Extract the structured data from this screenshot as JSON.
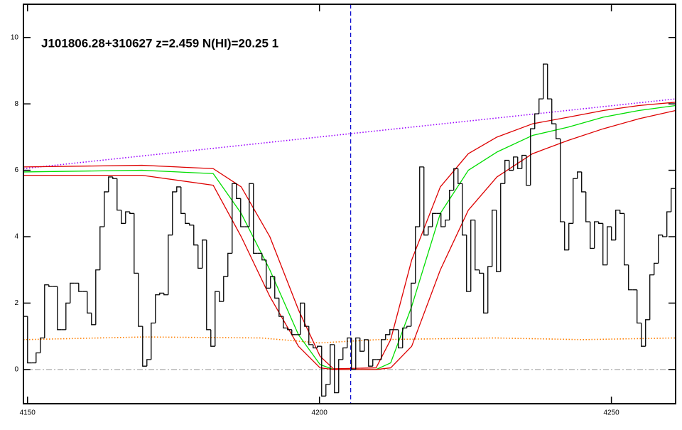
{
  "chart_data": {
    "type": "step",
    "title": "J101806.28+310627 z=2.459 N(HI)=20.25 1",
    "xlim": [
      4149.3,
      4261
    ],
    "ylim": [
      -1.03,
      11.0
    ],
    "xticks": [
      4150,
      4200,
      4250
    ],
    "yticks": [
      0,
      2,
      4,
      6,
      8,
      10
    ],
    "x": [
      4149.64,
      4150.37,
      4151.1,
      4151.83,
      4152.56,
      4153.29,
      4154.02,
      4154.75,
      4155.48,
      4156.21,
      4156.94,
      4157.67,
      4158.4,
      4159.13,
      4159.86,
      4160.59,
      4161.32,
      4162.05,
      4162.78,
      4163.51,
      4164.24,
      4164.97,
      4165.7,
      4166.43,
      4167.16,
      4167.89,
      4168.62,
      4169.35,
      4170.08,
      4170.81,
      4171.54,
      4172.27,
      4173.0,
      4173.73,
      4174.46,
      4175.19,
      4175.92,
      4176.65,
      4177.38,
      4178.11,
      4178.84,
      4179.57,
      4180.3,
      4181.03,
      4181.76,
      4182.49,
      4183.22,
      4183.95,
      4184.68,
      4185.41,
      4186.14,
      4186.87,
      4187.6,
      4188.33,
      4189.06,
      4189.79,
      4190.52,
      4191.25,
      4191.98,
      4192.71,
      4193.44,
      4194.17,
      4194.9,
      4195.63,
      4196.36,
      4197.09,
      4197.82,
      4198.55,
      4199.28,
      4200.01,
      4200.74,
      4201.47,
      4202.2,
      4202.93,
      4203.66,
      4204.39,
      4205.12,
      4205.85,
      4206.58,
      4207.31,
      4208.04,
      4208.77,
      4209.5,
      4210.23,
      4210.96,
      4211.69,
      4212.42,
      4213.15,
      4213.88,
      4214.61,
      4215.34,
      4216.07,
      4216.8,
      4217.53,
      4218.26,
      4218.99,
      4219.72,
      4220.45,
      4221.18,
      4221.91,
      4222.64,
      4223.37,
      4224.1,
      4224.83,
      4225.56,
      4226.29,
      4227.02,
      4227.75,
      4228.48,
      4229.21,
      4229.94,
      4230.67,
      4231.4,
      4232.13,
      4232.86,
      4233.59,
      4234.32,
      4235.05,
      4235.78,
      4236.51,
      4237.24,
      4237.97,
      4238.7,
      4239.43,
      4240.16,
      4240.89,
      4241.62,
      4242.35,
      4243.08,
      4243.81,
      4244.54,
      4245.27,
      4246.0,
      4246.73,
      4247.46,
      4248.19,
      4248.92,
      4249.65,
      4250.38,
      4251.11,
      4251.84,
      4252.57,
      4253.3,
      4254.03,
      4254.76,
      4255.49,
      4256.22,
      4256.95,
      4257.68,
      4258.41,
      4259.14,
      4259.87,
      4260.6
    ],
    "values": [
      1.6,
      0.2,
      0.2,
      0.5,
      0.95,
      2.55,
      2.5,
      2.5,
      1.2,
      1.2,
      2.0,
      2.6,
      2.6,
      2.35,
      2.35,
      1.7,
      1.35,
      3.0,
      4.3,
      5.35,
      5.8,
      5.75,
      4.8,
      4.4,
      4.75,
      4.7,
      2.9,
      1.3,
      0.1,
      0.3,
      1.4,
      2.25,
      2.3,
      2.25,
      4.05,
      5.35,
      5.5,
      4.7,
      4.4,
      4.35,
      3.75,
      3.05,
      3.9,
      1.2,
      0.7,
      2.35,
      2.05,
      2.8,
      3.5,
      5.6,
      5.15,
      4.3,
      4.3,
      5.6,
      3.5,
      3.5,
      3.3,
      2.45,
      2.8,
      2.15,
      1.6,
      1.25,
      1.2,
      1.05,
      1.05,
      2.0,
      1.3,
      0.75,
      0.65,
      0.7,
      -0.8,
      -0.45,
      0.75,
      -0.7,
      0.3,
      0.65,
      0.95,
      0.0,
      0.95,
      0.55,
      0.9,
      0.1,
      0.3,
      0.3,
      0.9,
      1.05,
      1.2,
      1.2,
      0.65,
      1.25,
      1.3,
      2.6,
      4.3,
      6.1,
      4.05,
      4.3,
      4.7,
      4.7,
      4.3,
      4.5,
      5.4,
      6.05,
      5.6,
      4.05,
      2.35,
      4.5,
      3.0,
      2.9,
      1.7,
      3.1,
      4.8,
      2.95,
      5.6,
      6.3,
      6.0,
      6.4,
      6.05,
      6.45,
      5.55,
      7.25,
      7.7,
      8.15,
      9.2,
      8.15,
      7.4,
      6.95,
      4.45,
      3.6,
      4.4,
      5.75,
      5.95,
      5.35,
      4.45,
      3.65,
      4.45,
      4.4,
      3.15,
      4.3,
      3.9,
      4.8,
      4.7,
      3.15,
      2.4,
      2.4,
      1.4,
      0.7,
      1.5,
      2.85,
      3.2,
      4.05,
      4.0,
      4.75,
      5.45
    ],
    "color": "#000000",
    "lines": [
      {
        "color": "#ff7f00",
        "style": "dotted",
        "x": [
          4149.3,
          4170,
          4190,
          4200,
          4210,
          4230,
          4245,
          4261
        ],
        "values": [
          0.9,
          0.98,
          0.95,
          0.8,
          0.9,
          0.95,
          0.9,
          0.95
        ]
      },
      {
        "color": "#9b00ff",
        "style": "dotted",
        "x": [
          4149.3,
          4261
        ],
        "values": [
          6.05,
          8.15
        ]
      },
      {
        "color": "#00dd00",
        "style": "solid",
        "x": [
          4149.3,
          4169.6,
          4181.8,
          4186.6,
          4191.5,
          4196.4,
          4200.1,
          4202.4,
          4209.7,
          4212.2,
          4215.8,
          4220.7,
          4225.5,
          4230.4,
          4236.5,
          4242.6,
          4248.6,
          4254.7,
          4261
        ],
        "values": [
          5.95,
          6.0,
          5.9,
          4.7,
          3.0,
          1.05,
          0.15,
          0.0,
          0.0,
          0.2,
          1.9,
          4.7,
          6.0,
          6.55,
          7.05,
          7.3,
          7.6,
          7.8,
          7.95
        ]
      },
      {
        "color": "#dd0000",
        "style": "solid",
        "x": [
          4149.3,
          4169.6,
          4181.8,
          4186.6,
          4191.5,
          4196.4,
          4200.1,
          4202.4,
          4209.7,
          4212.2,
          4215.8,
          4220.7,
          4225.5,
          4230.4,
          4236.5,
          4242.6,
          4248.6,
          4254.7,
          4261
        ],
        "values": [
          6.1,
          6.15,
          6.05,
          5.5,
          4.0,
          1.8,
          0.4,
          0.02,
          0.05,
          0.9,
          3.3,
          5.5,
          6.5,
          7.0,
          7.4,
          7.6,
          7.8,
          7.95,
          8.05
        ]
      },
      {
        "color": "#dd0000",
        "style": "solid",
        "x": [
          4149.3,
          4169.6,
          4181.8,
          4186.6,
          4191.5,
          4196.4,
          4200.1,
          4202.4,
          4209.7,
          4212.2,
          4215.8,
          4220.7,
          4225.5,
          4230.4,
          4236.5,
          4242.6,
          4248.6,
          4254.7,
          4261
        ],
        "values": [
          5.85,
          5.85,
          5.55,
          4.0,
          2.2,
          0.7,
          0.05,
          0.0,
          0.0,
          0.05,
          0.7,
          3.0,
          4.8,
          5.8,
          6.5,
          6.9,
          7.25,
          7.55,
          7.8
        ]
      }
    ],
    "vline": {
      "value": 4205.35,
      "color": "#0000cc"
    },
    "hline": {
      "value": 0,
      "color": "#999999"
    }
  }
}
